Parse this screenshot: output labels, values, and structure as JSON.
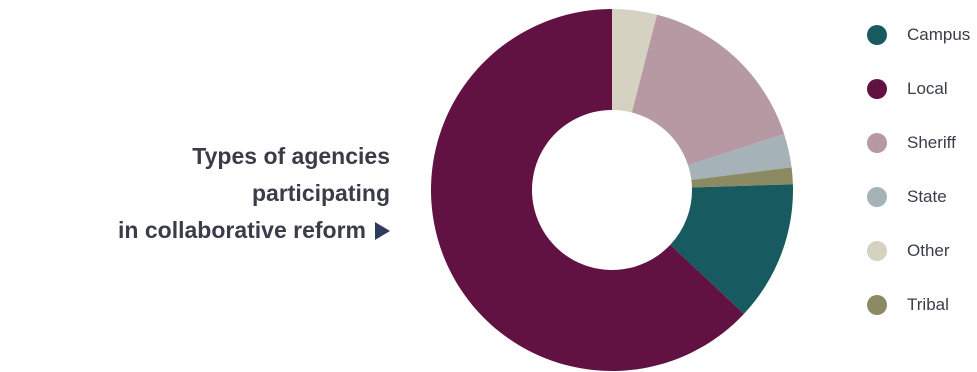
{
  "title": {
    "line1": "Types of agencies participating",
    "line2": "in collaborative reform"
  },
  "chart_data": {
    "type": "pie",
    "style": "donut",
    "legend_position": "right",
    "categories": [
      "Campus",
      "Local",
      "Sheriff",
      "State",
      "Other",
      "Tribal"
    ],
    "values": [
      12.5,
      63,
      16,
      3,
      4,
      1.5
    ],
    "unit": "percent",
    "colors": [
      "#175a60",
      "#611243",
      "#b799a3",
      "#a5b3b8",
      "#d6d2c1",
      "#8b8a63"
    ],
    "slice_order": [
      "Other",
      "Sheriff",
      "State",
      "Tribal",
      "Campus",
      "Local"
    ]
  }
}
